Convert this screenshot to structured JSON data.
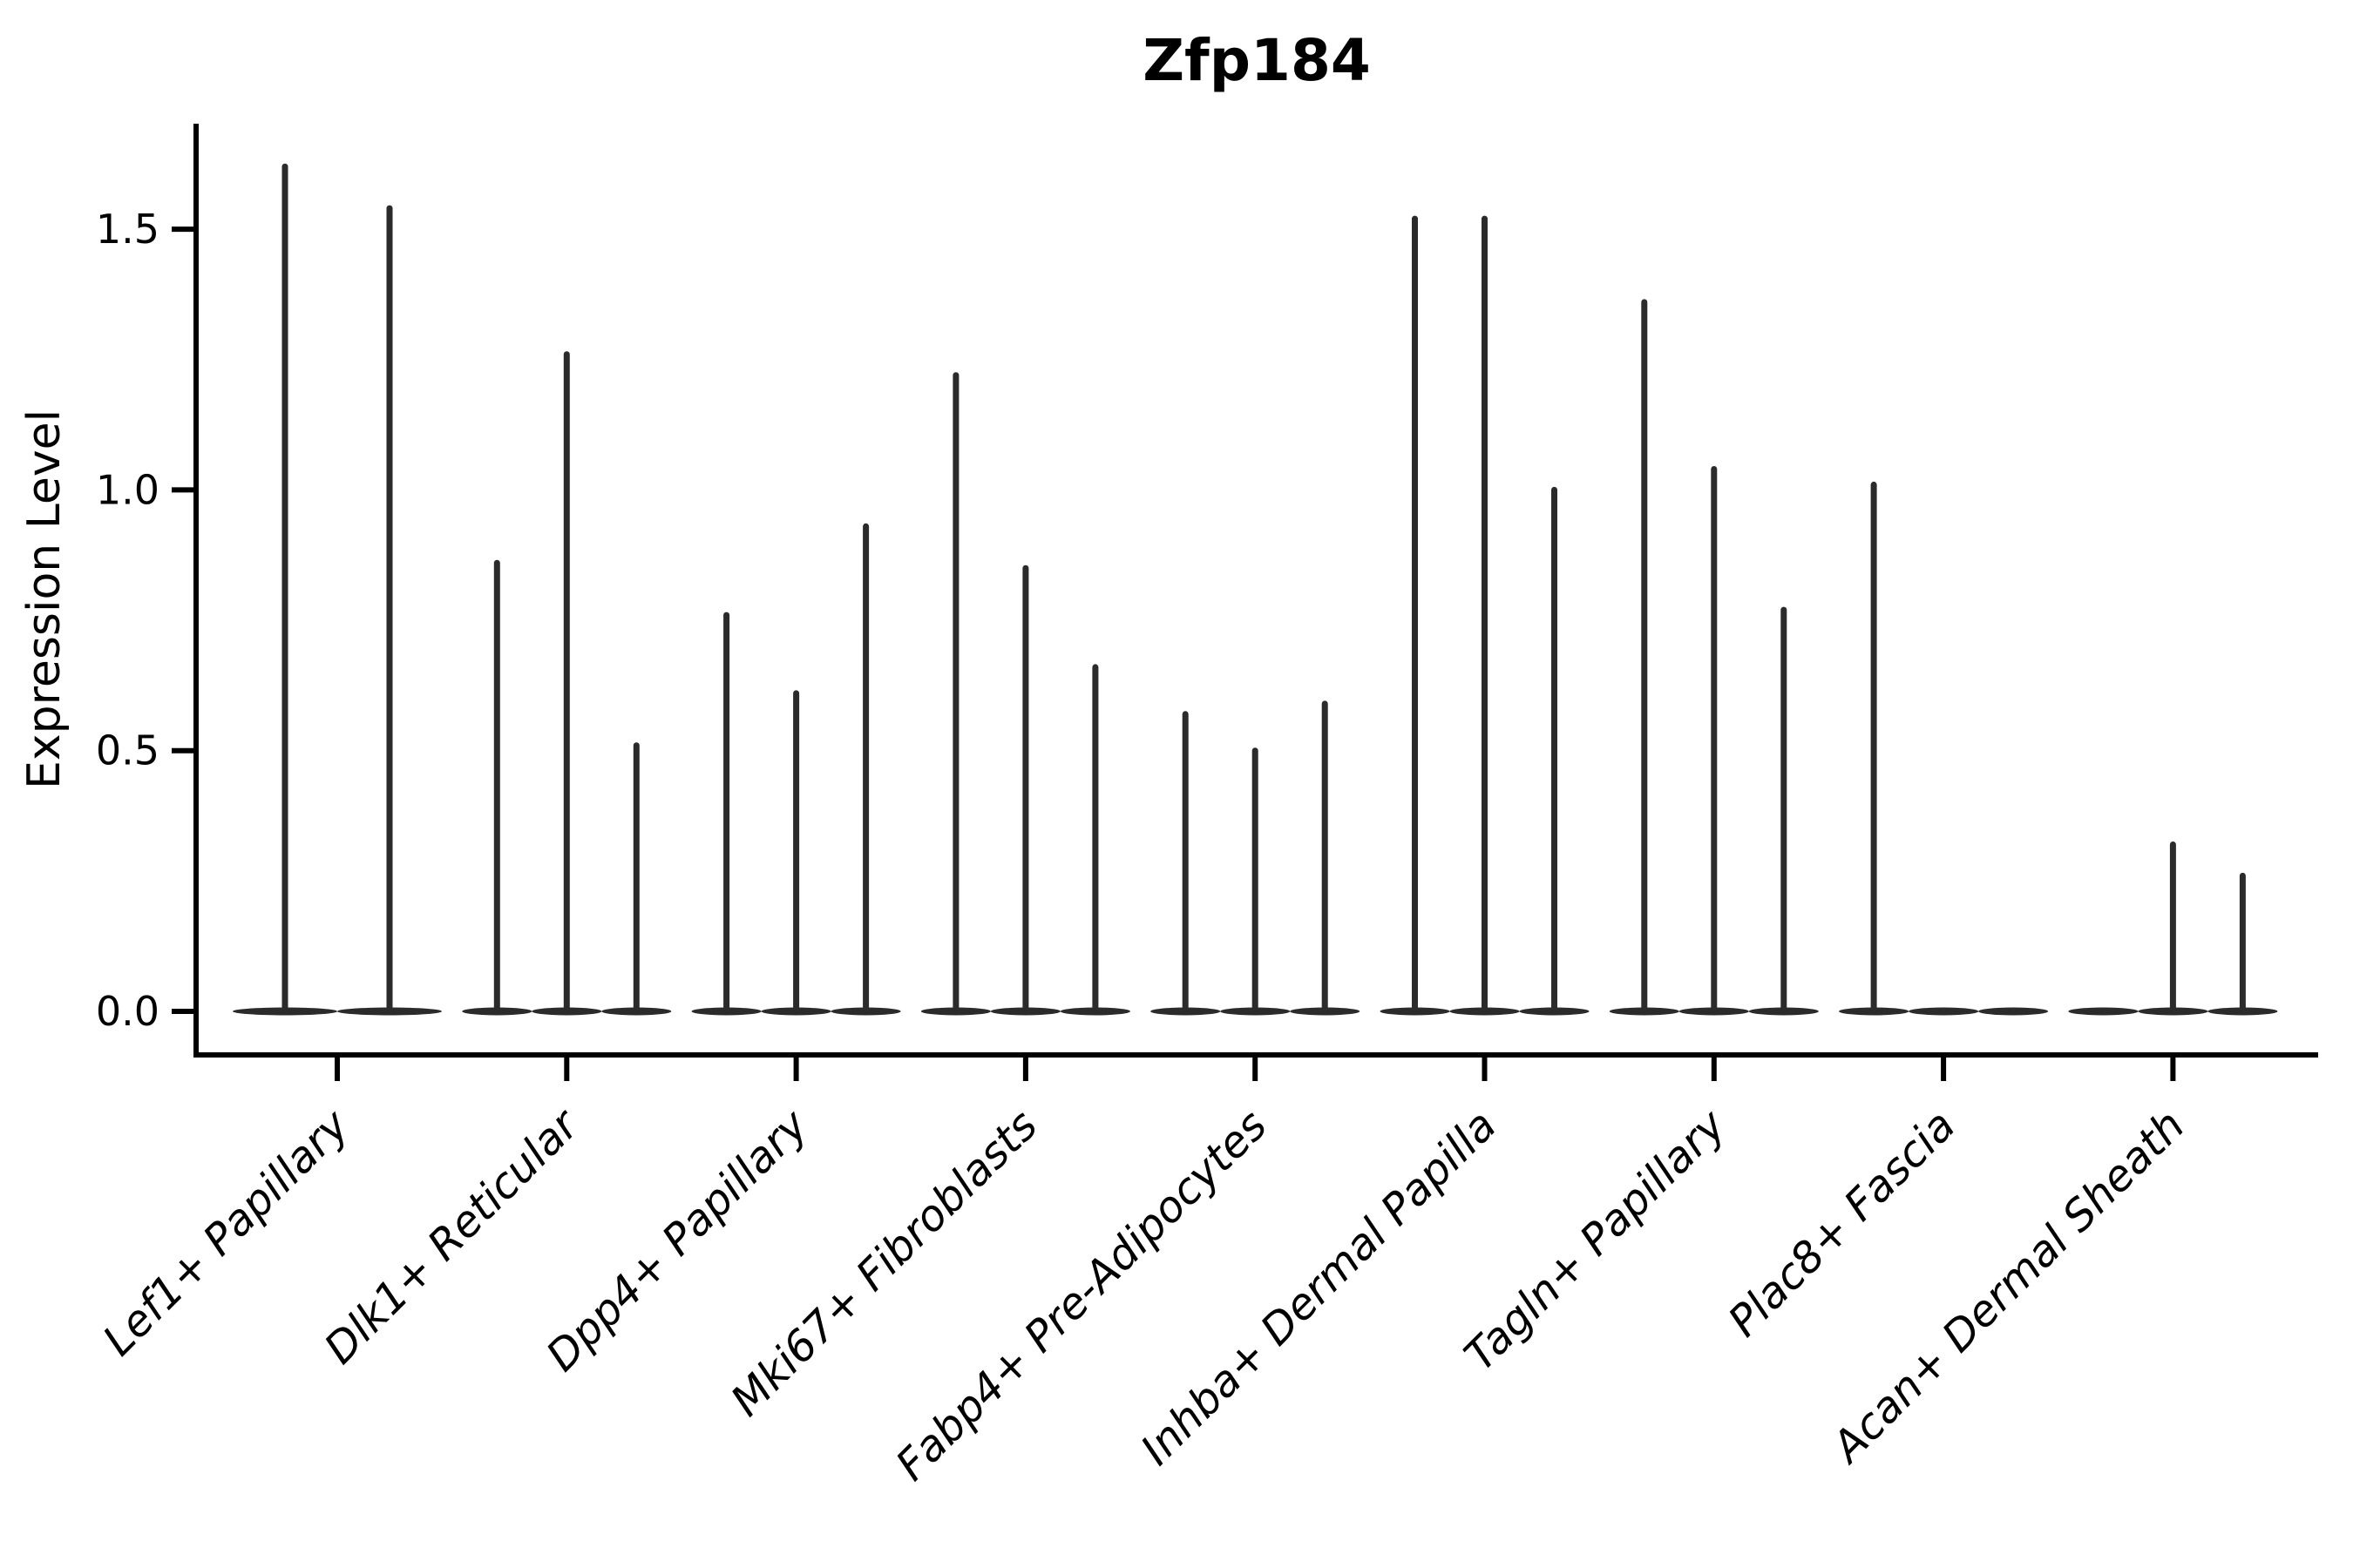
{
  "title": "Zfp184",
  "y_axis": {
    "label": "Expression Level",
    "tick_labels": [
      "0.0",
      "0.5",
      "1.0",
      "1.5"
    ]
  },
  "chart_data": {
    "type": "violin",
    "title": "Zfp184",
    "xlabel": "",
    "ylabel": "Expression Level",
    "ylim": [
      -0.08,
      1.7
    ],
    "yticks": [
      0.0,
      0.5,
      1.0,
      1.5
    ],
    "ytick_labels": [
      "0.0",
      "0.5",
      "1.0",
      "1.5"
    ],
    "grid": false,
    "legend": "none",
    "x_tick_rotation_deg": 45,
    "categories": [
      "Lef1+ Papillary",
      "Dlk1+ Reticular",
      "Dpp4+ Papillary",
      "Mki67+ Fibroblasts",
      "Fabp4+ Pre-Adipocytes",
      "Inhba+ Dermal Papilla",
      "Tagln+ Papillary",
      "Plac8+ Fascia",
      "Acan+ Dermal Sheath"
    ],
    "groups": [
      {
        "category": "Lef1+ Papillary",
        "violin_max_values": [
          1.62,
          1.54
        ]
      },
      {
        "category": "Dlk1+ Reticular",
        "violin_max_values": [
          0.86,
          1.26,
          0.51
        ]
      },
      {
        "category": "Dpp4+ Papillary",
        "violin_max_values": [
          0.76,
          0.61,
          0.93
        ]
      },
      {
        "category": "Mki67+ Fibroblasts",
        "violin_max_values": [
          1.22,
          0.85,
          0.66
        ]
      },
      {
        "category": "Fabp4+ Pre-Adipocytes",
        "violin_max_values": [
          0.57,
          0.5,
          0.59
        ]
      },
      {
        "category": "Inhba+ Dermal Papilla",
        "violin_max_values": [
          1.52,
          1.52,
          1.0
        ]
      },
      {
        "category": "Tagln+ Papillary",
        "violin_max_values": [
          1.36,
          1.04,
          0.77
        ]
      },
      {
        "category": "Plac8+ Fascia",
        "violin_max_values": [
          1.01,
          0.0,
          0.0
        ]
      },
      {
        "category": "Acan+ Dermal Sheath",
        "violin_max_values": [
          0.0,
          0.32,
          0.26
        ]
      }
    ],
    "colors": {
      "violin": "#2b2b2b",
      "axis": "#000000",
      "background": "#ffffff"
    }
  }
}
